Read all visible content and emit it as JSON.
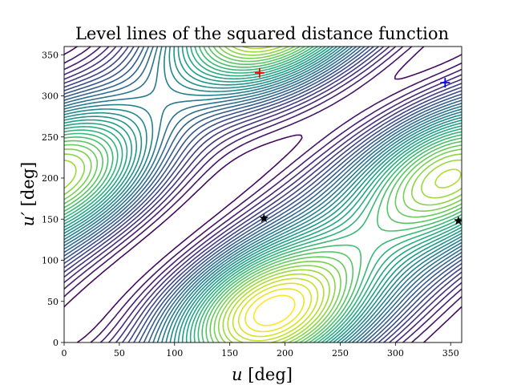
{
  "chart_data": {
    "type": "contour",
    "title": "Level lines of the squared distance function",
    "xlabel_main": "u",
    "xlabel_unit": " [deg]",
    "ylabel_main": "u′",
    "ylabel_unit": " [deg]",
    "xlim": [
      0,
      360
    ],
    "ylim": [
      0,
      360
    ],
    "xticks": [
      0,
      50,
      100,
      150,
      200,
      250,
      300,
      350
    ],
    "yticks": [
      0,
      50,
      100,
      150,
      200,
      250,
      300,
      350
    ],
    "grid": false,
    "colormap": "viridis",
    "markers": [
      {
        "x": 177,
        "y": 328,
        "symbol": "plus",
        "color": "#ff0000"
      },
      {
        "x": 345,
        "y": 316,
        "symbol": "plus",
        "color": "#0000ff"
      },
      {
        "x": 181,
        "y": 151,
        "symbol": "star",
        "color": "#000000"
      },
      {
        "x": 357,
        "y": 148,
        "symbol": "star",
        "color": "#000000"
      }
    ]
  }
}
